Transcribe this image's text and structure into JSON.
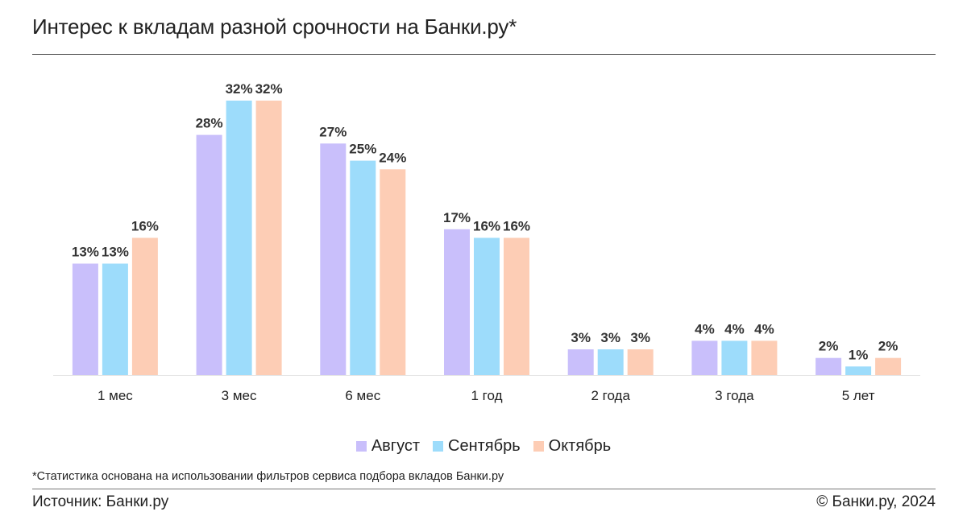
{
  "header": {
    "title": "Интерес к вкладам разной срочности на Банки.ру*"
  },
  "chart_data": {
    "type": "bar",
    "title": "Интерес к вкладам разной срочности на Банки.ру*",
    "categories": [
      "1 мес",
      "3 мес",
      "6 мес",
      "1 год",
      "2 года",
      "3 года",
      "5 лет"
    ],
    "series": [
      {
        "name": "Август",
        "color": "#c9bffb",
        "values": [
          13,
          28,
          27,
          17,
          3,
          4,
          2
        ],
        "labels": [
          "13%",
          "28%",
          "27%",
          "17%",
          "3%",
          "4%",
          "2%"
        ]
      },
      {
        "name": "Сентябрь",
        "color": "#9ddcfb",
        "values": [
          13,
          32,
          25,
          16,
          3,
          4,
          1
        ],
        "labels": [
          "13%",
          "32%",
          "25%",
          "16%",
          "3%",
          "4%",
          "1%"
        ]
      },
      {
        "name": "Октябрь",
        "color": "#fdcdb5",
        "values": [
          16,
          32,
          24,
          16,
          3,
          4,
          2
        ],
        "labels": [
          "16%",
          "32%",
          "24%",
          "16%",
          "3%",
          "4%",
          "2%"
        ]
      }
    ],
    "xlabel": "",
    "ylabel": "",
    "ylim": [
      0,
      32
    ],
    "grid": false,
    "legend_position": "bottom-center",
    "baseline_color": "#e6e6e6"
  },
  "footer": {
    "footnote": "*Статистика основана на использовании фильтров сервиса подбора вкладов Банки.ру",
    "source": "Источник: Банки.ру",
    "copyright": "© Банки.ру, 2024"
  }
}
